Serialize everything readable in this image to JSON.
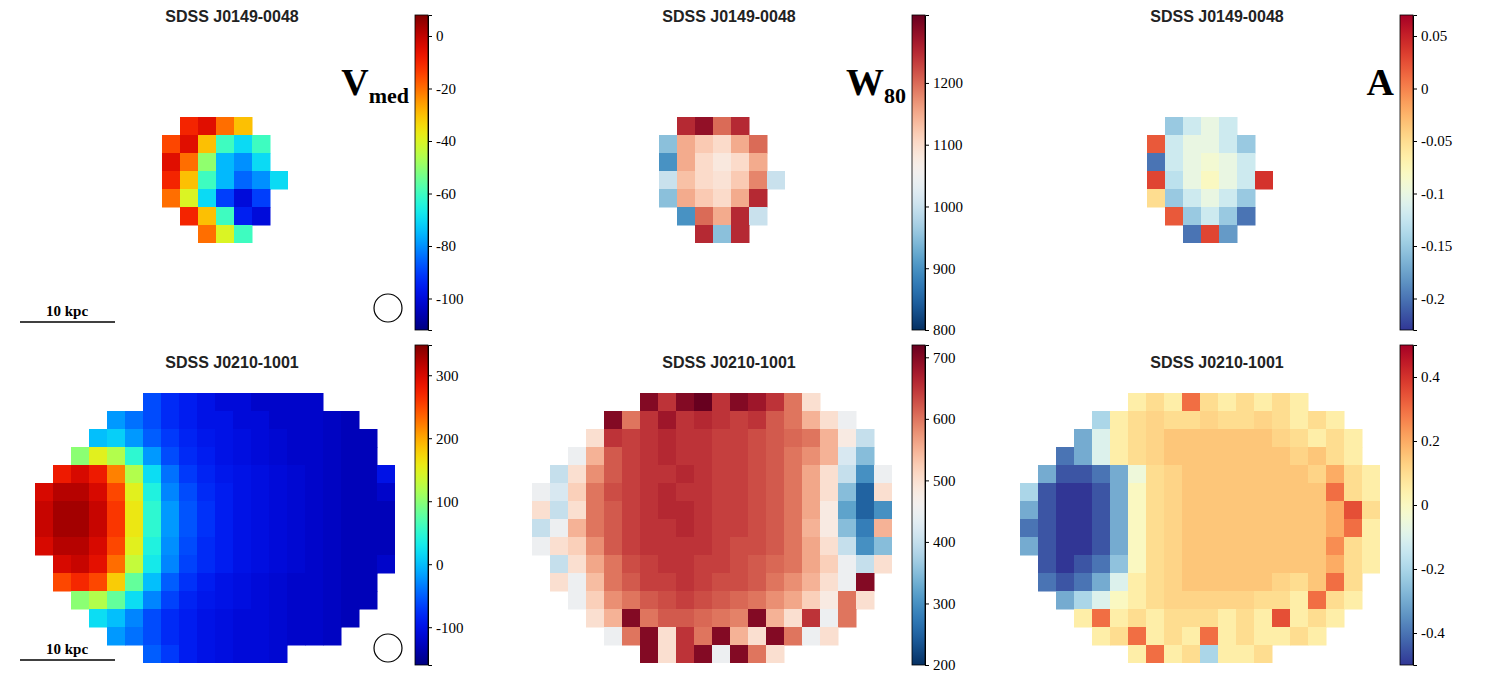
{
  "chart_data": [
    {
      "type": "heatmap",
      "title": "SDSS J0149-0048",
      "label": "V",
      "label_sub": "med",
      "annotation": "10 kpc",
      "color": "jet",
      "tick_labels": false,
      "colorbar_lim": [
        -112,
        8
      ],
      "colorbar_ticks": [
        0,
        -20,
        -40,
        -60,
        -80,
        -100
      ],
      "cells": [
        [
          null,
          -10,
          -5,
          -20,
          -30,
          null,
          null
        ],
        [
          -15,
          -5,
          -30,
          -60,
          -70,
          -60,
          null
        ],
        [
          -5,
          -20,
          -50,
          -75,
          -80,
          -70,
          null
        ],
        [
          -10,
          -30,
          -60,
          -75,
          -85,
          -80,
          -70
        ],
        [
          -20,
          -40,
          -70,
          -90,
          -100,
          -90,
          null
        ],
        [
          null,
          -10,
          -30,
          -60,
          -95,
          -100,
          null
        ],
        [
          null,
          null,
          -20,
          -40,
          -60,
          null,
          null
        ]
      ]
    },
    {
      "type": "heatmap",
      "title": "SDSS J0149-0048",
      "label": "W",
      "label_sub": "80",
      "color": "RdBu",
      "tick_labels": false,
      "colorbar_lim": [
        800,
        1310
      ],
      "colorbar_ticks": [
        1200,
        1100,
        1000,
        900,
        800
      ],
      "cells": [
        [
          null,
          1250,
          1280,
          1200,
          1250,
          null,
          null
        ],
        [
          950,
          1150,
          1120,
          1100,
          1150,
          1200,
          null
        ],
        [
          900,
          1150,
          1100,
          1080,
          1100,
          1150,
          null
        ],
        [
          1000,
          1130,
          1100,
          1090,
          1120,
          1180,
          1000
        ],
        [
          950,
          1150,
          1120,
          1100,
          1150,
          1250,
          null
        ],
        [
          null,
          900,
          1200,
          1150,
          1250,
          1000,
          null
        ],
        [
          null,
          null,
          1250,
          950,
          1250,
          null,
          null
        ]
      ]
    },
    {
      "type": "heatmap",
      "title": "SDSS J0149-0048",
      "label": "A",
      "color": "RdYlBu",
      "tick_labels": false,
      "colorbar_lim": [
        -0.23,
        0.07
      ],
      "colorbar_ticks": [
        0.05,
        0,
        -0.05,
        -0.1,
        -0.15,
        -0.2
      ],
      "cells": [
        [
          null,
          -0.15,
          -0.12,
          -0.1,
          -0.12,
          null,
          null
        ],
        [
          0.02,
          -0.12,
          -0.1,
          -0.1,
          -0.12,
          -0.15,
          null
        ],
        [
          -0.2,
          -0.12,
          -0.1,
          -0.09,
          -0.1,
          -0.12,
          null
        ],
        [
          0.03,
          -0.13,
          -0.1,
          -0.08,
          -0.1,
          -0.12,
          0.04
        ],
        [
          -0.05,
          -0.15,
          -0.12,
          -0.1,
          -0.12,
          -0.15,
          null
        ],
        [
          null,
          0.02,
          -0.15,
          -0.12,
          -0.15,
          -0.2,
          null
        ],
        [
          null,
          null,
          -0.2,
          0.03,
          -0.18,
          null,
          null
        ]
      ]
    },
    {
      "type": "heatmap",
      "title": "SDSS J0210-1001",
      "annotation": "10 kpc",
      "color": "jet",
      "tick_labels": false,
      "colorbar_lim": [
        -160,
        348
      ],
      "colorbar_ticks": [
        300,
        200,
        100,
        0,
        -100
      ],
      "cells": [
        [
          null,
          null,
          null,
          null,
          null,
          null,
          -60,
          -80,
          -90,
          -100,
          -110,
          -110,
          -120,
          -120,
          -120,
          -120,
          null,
          null,
          null,
          null
        ],
        [
          null,
          null,
          null,
          null,
          -20,
          -40,
          -60,
          -80,
          -90,
          -100,
          -100,
          -110,
          -110,
          -120,
          -120,
          -120,
          -125,
          -130,
          null,
          null
        ],
        [
          null,
          null,
          null,
          0,
          10,
          -20,
          -50,
          -70,
          -85,
          -95,
          -100,
          -105,
          -110,
          -115,
          -120,
          -120,
          -125,
          -130,
          -130,
          null
        ],
        [
          null,
          null,
          100,
          150,
          120,
          50,
          -20,
          -60,
          -80,
          -90,
          -100,
          -105,
          -110,
          -115,
          -120,
          -120,
          -125,
          -130,
          -130,
          null
        ],
        [
          null,
          280,
          300,
          280,
          220,
          120,
          20,
          -40,
          -70,
          -85,
          -95,
          -100,
          -105,
          -110,
          -115,
          -120,
          -125,
          -130,
          -130,
          -100
        ],
        [
          300,
          320,
          320,
          300,
          250,
          150,
          40,
          -30,
          -60,
          -80,
          -90,
          -100,
          -105,
          -110,
          -115,
          -120,
          -125,
          -130,
          -130,
          -120
        ],
        [
          310,
          330,
          330,
          310,
          260,
          160,
          50,
          -20,
          -55,
          -75,
          -90,
          -100,
          -105,
          -110,
          -115,
          -120,
          -125,
          -130,
          -130,
          -130
        ],
        [
          310,
          330,
          330,
          310,
          260,
          160,
          50,
          -20,
          -55,
          -75,
          -90,
          -100,
          -105,
          -110,
          -115,
          -120,
          -125,
          -130,
          -130,
          -130
        ],
        [
          300,
          320,
          320,
          300,
          250,
          150,
          40,
          -25,
          -60,
          -80,
          -90,
          -100,
          -105,
          -110,
          -115,
          -120,
          -125,
          -130,
          -130,
          -130
        ],
        [
          null,
          300,
          310,
          290,
          230,
          130,
          30,
          -30,
          -65,
          -80,
          -90,
          -100,
          -105,
          -110,
          -115,
          -120,
          -125,
          -130,
          -130,
          -120
        ],
        [
          null,
          250,
          270,
          250,
          180,
          80,
          0,
          -50,
          -75,
          -90,
          -100,
          -105,
          -110,
          -115,
          -120,
          -120,
          -125,
          -130,
          -130,
          null
        ],
        [
          null,
          null,
          100,
          120,
          80,
          20,
          -30,
          -65,
          -85,
          -95,
          -100,
          -105,
          -110,
          -115,
          -120,
          -120,
          -125,
          -130,
          -130,
          null
        ],
        [
          null,
          null,
          null,
          20,
          0,
          -30,
          -60,
          -80,
          -90,
          -100,
          -105,
          -110,
          -110,
          -115,
          -120,
          -120,
          -125,
          -130,
          null,
          null
        ],
        [
          null,
          null,
          null,
          null,
          -20,
          -40,
          -60,
          -80,
          -90,
          -100,
          -105,
          -110,
          -110,
          -115,
          -120,
          -120,
          -125,
          null,
          null,
          null
        ],
        [
          null,
          null,
          null,
          null,
          null,
          null,
          -50,
          -70,
          -90,
          -100,
          -105,
          -110,
          -110,
          -115,
          null,
          null,
          null,
          null,
          null,
          null
        ]
      ]
    },
    {
      "type": "heatmap",
      "title": "SDSS J0210-1001",
      "color": "RdBu",
      "tick_labels": false,
      "colorbar_lim": [
        200,
        720
      ],
      "colorbar_ticks": [
        700,
        600,
        500,
        400,
        300,
        200
      ],
      "cells": [
        [
          null,
          null,
          null,
          null,
          null,
          null,
          700,
          650,
          700,
          720,
          650,
          700,
          680,
          650,
          600,
          500,
          null,
          null,
          null,
          null
        ],
        [
          null,
          null,
          null,
          null,
          700,
          600,
          650,
          680,
          650,
          660,
          650,
          640,
          650,
          620,
          600,
          550,
          500,
          450,
          null,
          null
        ],
        [
          null,
          null,
          null,
          500,
          650,
          640,
          650,
          660,
          650,
          650,
          640,
          640,
          630,
          620,
          610,
          600,
          550,
          480,
          400,
          null
        ],
        [
          null,
          null,
          450,
          550,
          620,
          640,
          650,
          660,
          650,
          650,
          640,
          640,
          630,
          620,
          600,
          580,
          550,
          420,
          350,
          null
        ],
        [
          null,
          400,
          500,
          580,
          620,
          640,
          650,
          650,
          660,
          650,
          640,
          640,
          630,
          620,
          600,
          560,
          500,
          400,
          300,
          450
        ],
        [
          450,
          420,
          520,
          600,
          630,
          640,
          650,
          660,
          650,
          650,
          640,
          640,
          630,
          620,
          600,
          560,
          500,
          350,
          250,
          500
        ],
        [
          500,
          400,
          500,
          600,
          620,
          640,
          650,
          660,
          660,
          650,
          640,
          640,
          630,
          620,
          600,
          560,
          480,
          320,
          250,
          300
        ],
        [
          400,
          450,
          550,
          600,
          620,
          640,
          650,
          650,
          660,
          650,
          640,
          640,
          630,
          620,
          600,
          550,
          480,
          350,
          280,
          550
        ],
        [
          450,
          500,
          520,
          580,
          620,
          640,
          650,
          650,
          650,
          650,
          640,
          630,
          630,
          620,
          600,
          560,
          500,
          400,
          300,
          350
        ],
        [
          null,
          400,
          500,
          560,
          600,
          630,
          640,
          650,
          650,
          640,
          640,
          630,
          620,
          610,
          600,
          560,
          520,
          450,
          400,
          500
        ],
        [
          null,
          500,
          450,
          540,
          600,
          620,
          640,
          640,
          650,
          640,
          630,
          630,
          620,
          600,
          580,
          550,
          500,
          450,
          700,
          null
        ],
        [
          null,
          null,
          450,
          520,
          580,
          600,
          620,
          630,
          640,
          630,
          620,
          610,
          600,
          580,
          560,
          520,
          480,
          600,
          500,
          null
        ],
        [
          null,
          null,
          null,
          500,
          550,
          700,
          600,
          620,
          620,
          610,
          600,
          590,
          700,
          550,
          500,
          650,
          450,
          600,
          null,
          null
        ],
        [
          null,
          null,
          null,
          null,
          450,
          600,
          700,
          500,
          650,
          600,
          700,
          550,
          500,
          700,
          600,
          450,
          500,
          null,
          null,
          null
        ],
        [
          null,
          null,
          null,
          null,
          null,
          null,
          700,
          500,
          650,
          700,
          450,
          700,
          600,
          500,
          null,
          null,
          null,
          null,
          null,
          null
        ]
      ]
    },
    {
      "type": "heatmap",
      "title": "SDSS J0210-1001",
      "color": "RdYlBu",
      "tick_labels": false,
      "colorbar_lim": [
        -0.5,
        0.5
      ],
      "colorbar_ticks": [
        0.4,
        0.2,
        0,
        -0.2,
        -0.4
      ],
      "cells": [
        [
          null,
          null,
          null,
          null,
          null,
          null,
          0.05,
          0.1,
          0.05,
          0.3,
          0.1,
          0.05,
          0.1,
          0.05,
          0.1,
          0.05,
          null,
          null,
          null,
          null
        ],
        [
          null,
          null,
          null,
          null,
          -0.2,
          0.05,
          0.1,
          0.12,
          0.1,
          0.1,
          0.12,
          0.1,
          0.1,
          0.12,
          0.1,
          0.05,
          0.1,
          0.05,
          null,
          null
        ],
        [
          null,
          null,
          null,
          -0.3,
          -0.1,
          0.05,
          0.1,
          0.12,
          0.15,
          0.15,
          0.15,
          0.15,
          0.15,
          0.15,
          0.12,
          0.1,
          0.05,
          0.1,
          0.05,
          null
        ],
        [
          null,
          null,
          -0.4,
          -0.3,
          -0.1,
          0.05,
          0.1,
          0.12,
          0.15,
          0.15,
          0.15,
          0.15,
          0.15,
          0.15,
          0.15,
          0.12,
          0.15,
          0.1,
          0.05,
          null
        ],
        [
          null,
          -0.3,
          -0.45,
          -0.45,
          -0.4,
          -0.3,
          -0.05,
          0.1,
          0.12,
          0.15,
          0.15,
          0.15,
          0.15,
          0.15,
          0.15,
          0.15,
          0.12,
          0.2,
          0.1,
          0.05
        ],
        [
          -0.2,
          -0.45,
          -0.5,
          -0.5,
          -0.45,
          -0.3,
          0,
          0.1,
          0.12,
          0.15,
          0.15,
          0.15,
          0.15,
          0.15,
          0.15,
          0.15,
          0.15,
          0.3,
          0.1,
          0.05
        ],
        [
          -0.3,
          -0.45,
          -0.5,
          -0.5,
          -0.45,
          -0.3,
          0,
          0.1,
          0.12,
          0.15,
          0.15,
          0.15,
          0.15,
          0.15,
          0.15,
          0.15,
          0.15,
          0.2,
          0.35,
          0.1
        ],
        [
          -0.4,
          -0.45,
          -0.5,
          -0.5,
          -0.45,
          -0.3,
          0,
          0.1,
          0.12,
          0.15,
          0.15,
          0.15,
          0.15,
          0.15,
          0.15,
          0.15,
          0.15,
          0.2,
          0.3,
          0.05
        ],
        [
          -0.3,
          -0.45,
          -0.5,
          -0.5,
          -0.45,
          -0.3,
          0,
          0.1,
          0.12,
          0.15,
          0.15,
          0.15,
          0.15,
          0.15,
          0.15,
          0.15,
          0.15,
          0.25,
          0.1,
          0.05
        ],
        [
          null,
          -0.45,
          -0.5,
          -0.45,
          -0.4,
          -0.25,
          0,
          0.1,
          0.12,
          0.15,
          0.15,
          0.15,
          0.15,
          0.15,
          0.15,
          0.15,
          0.15,
          0.2,
          0.1,
          0.05
        ],
        [
          null,
          -0.4,
          -0.45,
          -0.4,
          -0.3,
          -0.1,
          0.05,
          0.1,
          0.12,
          0.15,
          0.15,
          0.15,
          0.15,
          0.15,
          0.12,
          0.1,
          0.15,
          0.3,
          0.1,
          null
        ],
        [
          null,
          null,
          -0.3,
          -0.2,
          -0.1,
          0,
          0.05,
          0.1,
          0.12,
          0.12,
          0.12,
          0.12,
          0.12,
          0.1,
          0.1,
          0.05,
          0.3,
          0.1,
          0.05,
          null
        ],
        [
          null,
          null,
          null,
          0.05,
          0.3,
          0.05,
          0.1,
          0.05,
          0.1,
          0.1,
          0.1,
          0.05,
          0.1,
          0.05,
          0.35,
          0.05,
          0.1,
          0.05,
          null,
          null
        ],
        [
          null,
          null,
          null,
          null,
          0.05,
          0.1,
          0.3,
          0.05,
          0.1,
          0.05,
          0.3,
          0.05,
          0.1,
          0.05,
          0.05,
          0.1,
          0.05,
          null,
          null,
          null
        ],
        [
          null,
          null,
          null,
          null,
          null,
          null,
          0.05,
          0.3,
          0.05,
          0.1,
          -0.2,
          0.05,
          0.05,
          0.1,
          null,
          null,
          null,
          null,
          null,
          null
        ]
      ]
    }
  ]
}
